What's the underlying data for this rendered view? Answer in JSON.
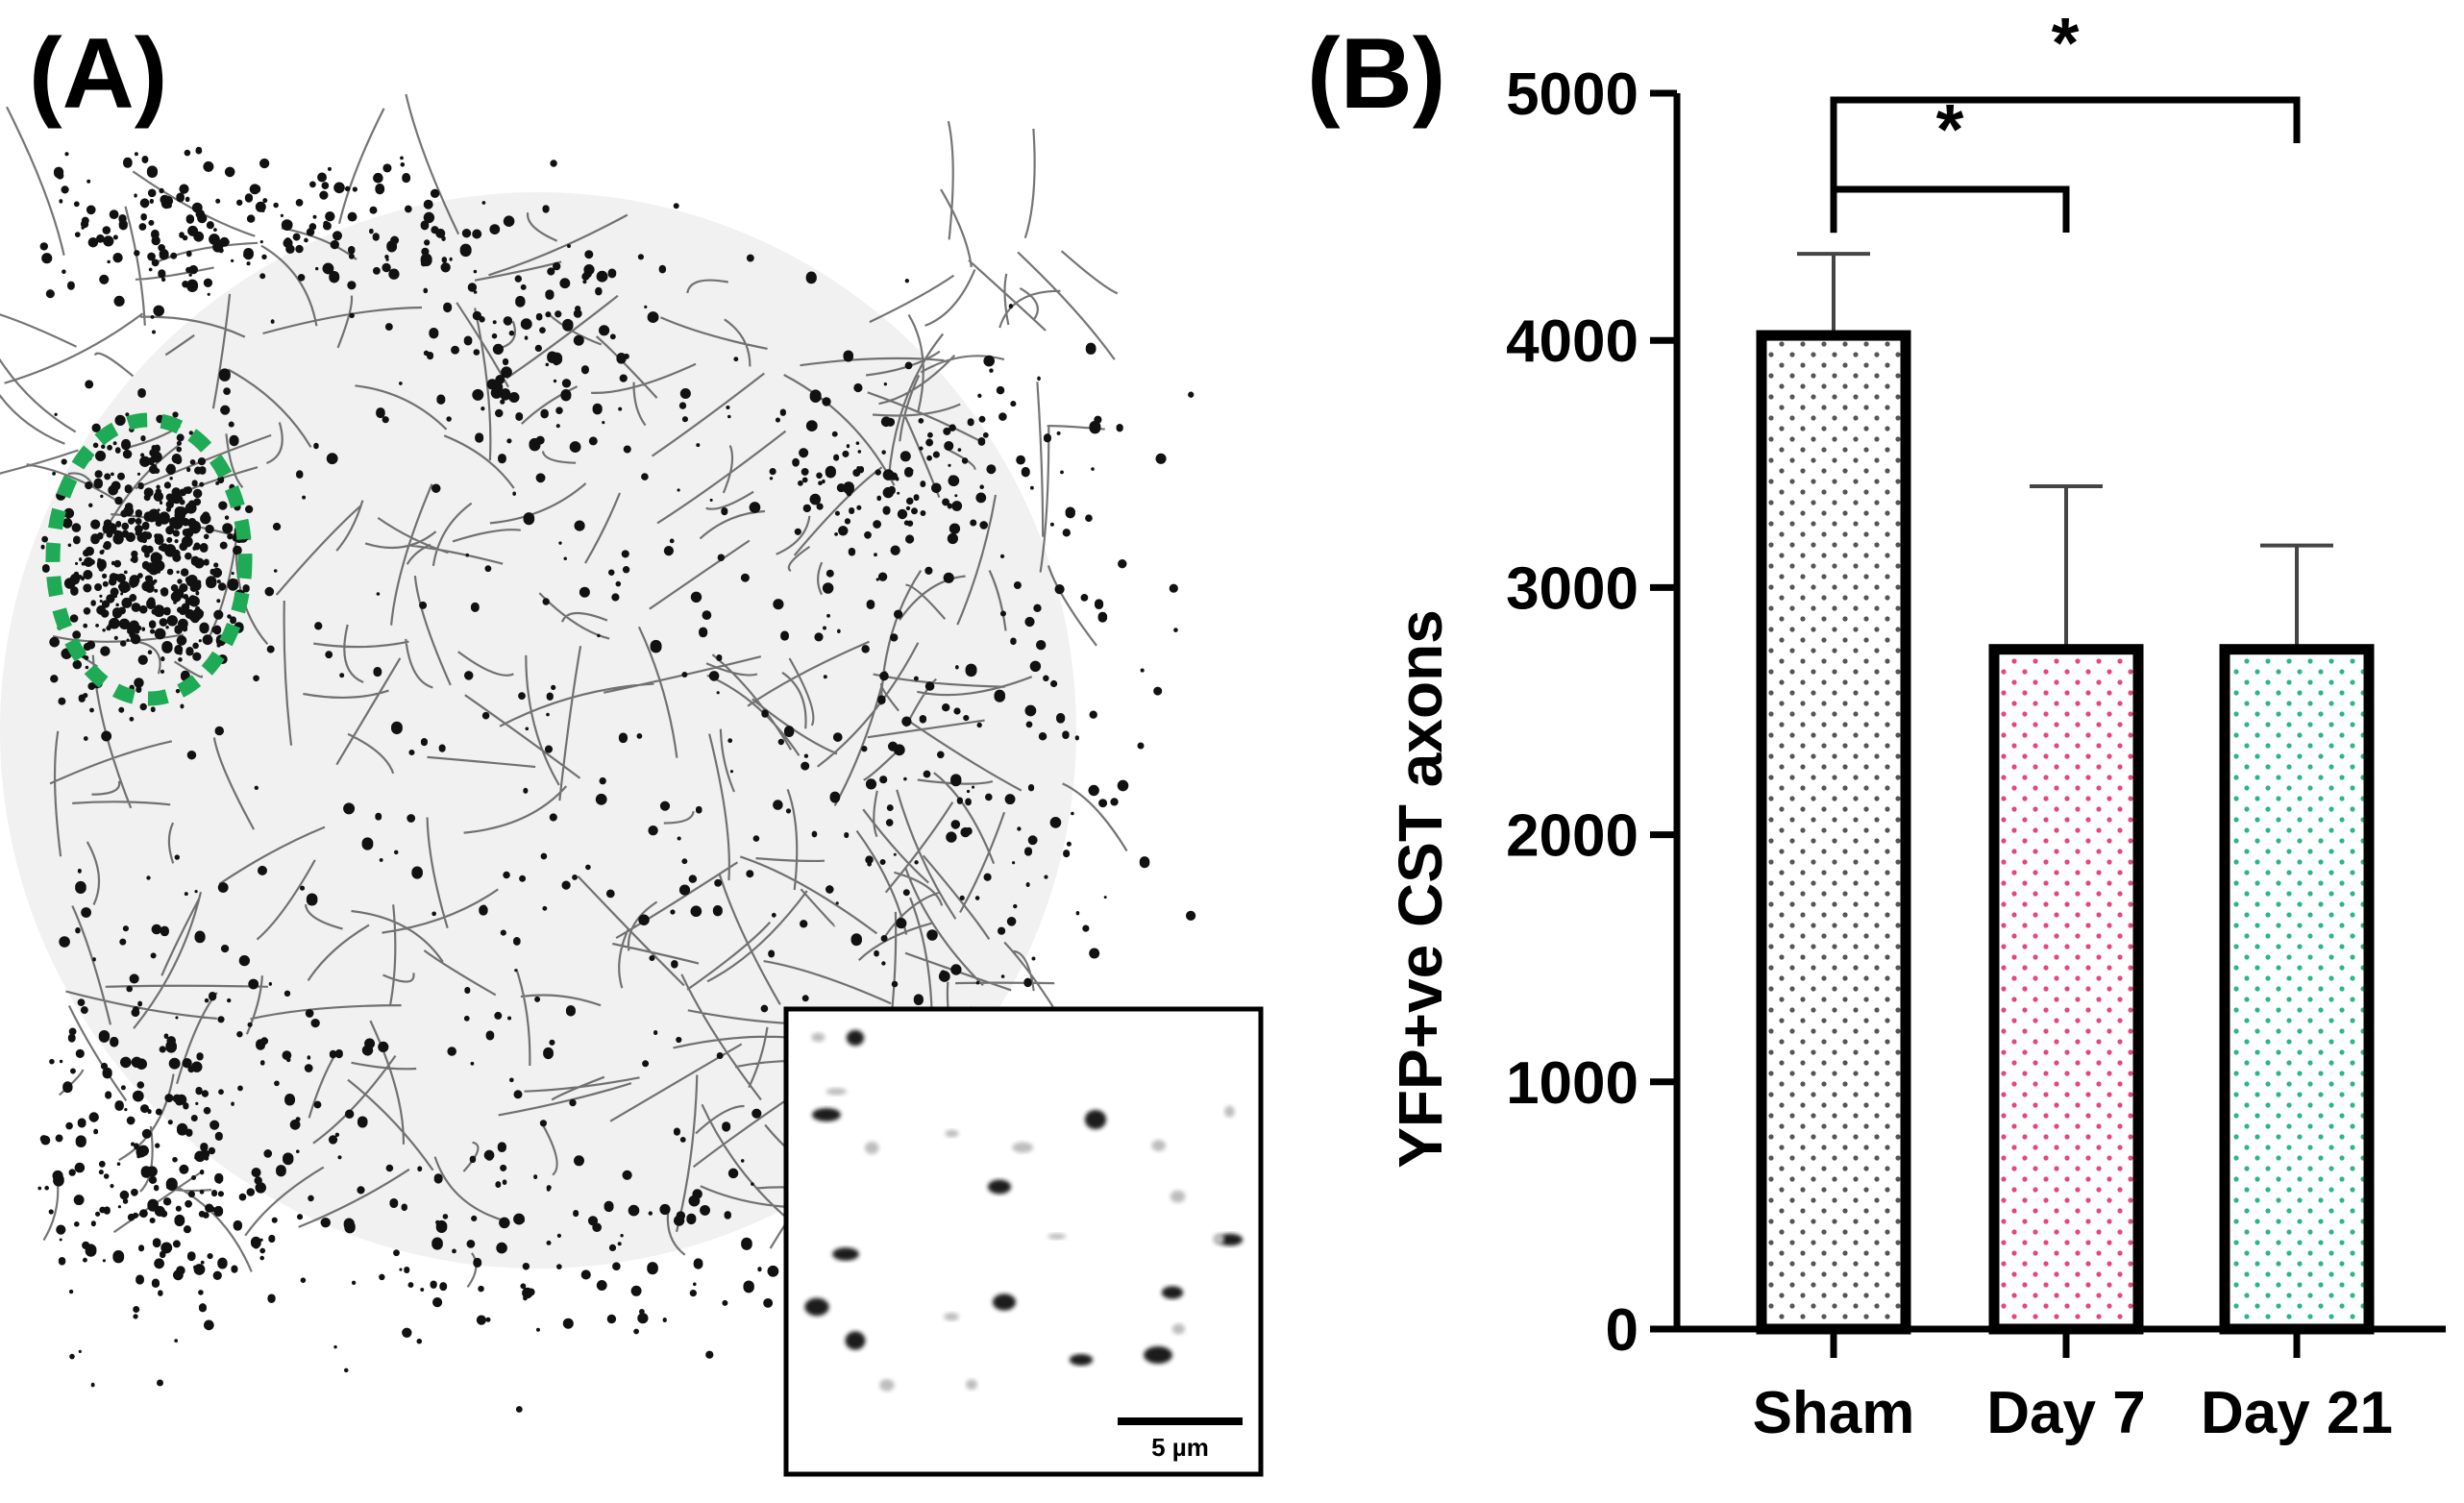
{
  "panel_a": {
    "label": "(A)",
    "inset": {
      "scale_bar_label": "5 µm"
    },
    "roi_outline_color": "#1faa55"
  },
  "panel_b": {
    "label": "(B)"
  },
  "chart_data": {
    "type": "bar",
    "categories": [
      "Sham",
      "Day 7",
      "Day 21"
    ],
    "values": [
      4020,
      2750,
      2750
    ],
    "error_upper": [
      4350,
      3410,
      3170
    ],
    "ylabel": "YFP+ve CST axons",
    "xlabel": "",
    "ylim": [
      0,
      5000
    ],
    "yticks": [
      0,
      1000,
      2000,
      3000,
      4000,
      5000
    ],
    "grid": false,
    "bar_fill": "dotted",
    "dot_colors": [
      "#555555",
      "#e8457a",
      "#2bb58a"
    ],
    "bar_edge_color": "#000000",
    "significance": [
      {
        "from": "Sham",
        "to": "Day 7",
        "label": "*"
      },
      {
        "from": "Sham",
        "to": "Day 21",
        "label": "*"
      }
    ]
  }
}
